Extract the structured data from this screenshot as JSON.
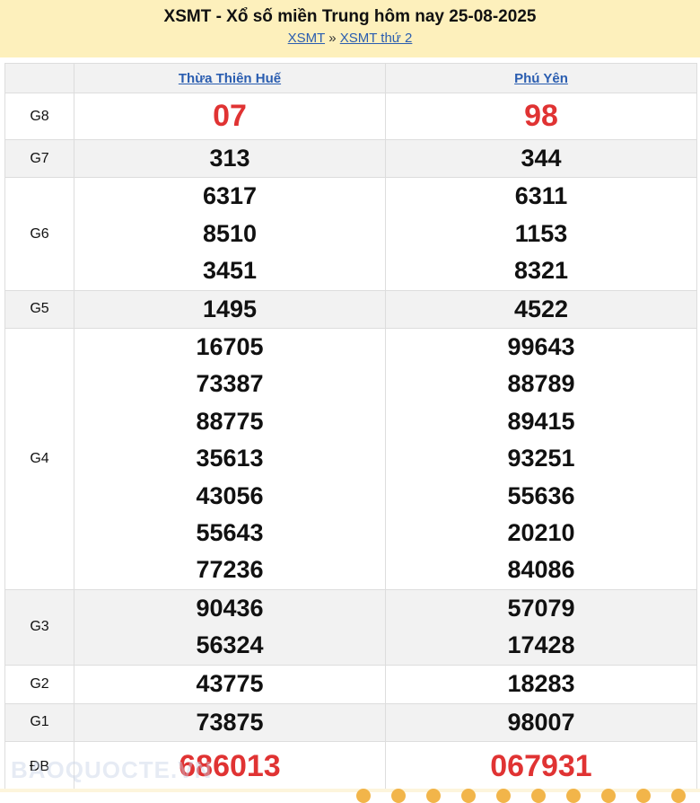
{
  "header": {
    "title": "XSMT - Xổ số miền Trung hôm nay 25-08-2025",
    "breadcrumb": [
      "XSMT",
      "XSMT thứ 2"
    ],
    "separator": "»"
  },
  "provinces": [
    "Thừa Thiên Huế",
    "Phú Yên"
  ],
  "prizes": [
    {
      "label": "G8",
      "a": [
        "07"
      ],
      "b": [
        "98"
      ],
      "red": true
    },
    {
      "label": "G7",
      "a": [
        "313"
      ],
      "b": [
        "344"
      ]
    },
    {
      "label": "G6",
      "a": [
        "6317",
        "8510",
        "3451"
      ],
      "b": [
        "6311",
        "1153",
        "8321"
      ]
    },
    {
      "label": "G5",
      "a": [
        "1495"
      ],
      "b": [
        "4522"
      ]
    },
    {
      "label": "G4",
      "a": [
        "16705",
        "73387",
        "88775",
        "35613",
        "43056",
        "55643",
        "77236"
      ],
      "b": [
        "99643",
        "88789",
        "89415",
        "93251",
        "55636",
        "20210",
        "84086"
      ]
    },
    {
      "label": "G3",
      "a": [
        "90436",
        "56324"
      ],
      "b": [
        "57079",
        "17428"
      ]
    },
    {
      "label": "G2",
      "a": [
        "43775"
      ],
      "b": [
        "18283"
      ]
    },
    {
      "label": "G1",
      "a": [
        "73875"
      ],
      "b": [
        "98007"
      ]
    },
    {
      "label": "ĐB",
      "a": [
        "686013"
      ],
      "b": [
        "067931"
      ],
      "red": true
    }
  ],
  "watermark": "BAOQUOCTE.VN",
  "colors": {
    "header_bg": "#fdf0bc",
    "link": "#2a5db0",
    "highlight": "#e03333"
  }
}
